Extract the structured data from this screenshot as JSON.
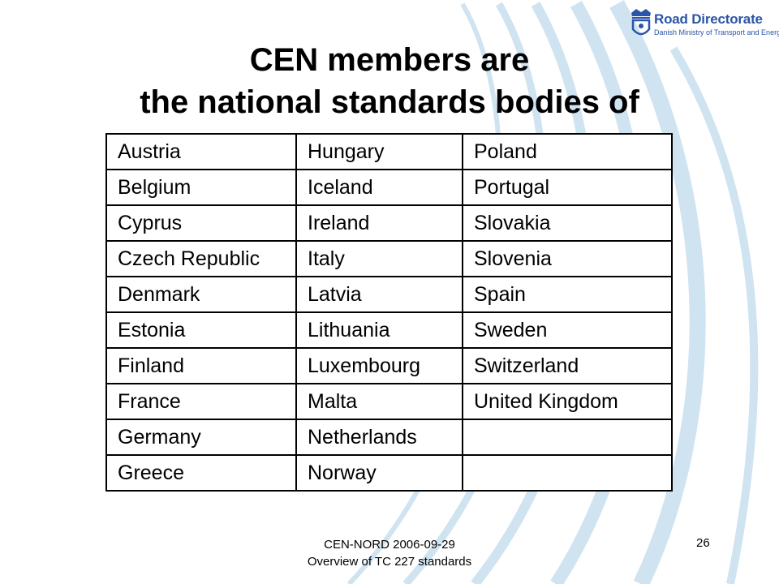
{
  "slide": {
    "title_line1": "CEN members are",
    "title_line2": "the national standards bodies of"
  },
  "logo": {
    "icon": "crown-shield-icon",
    "name": "Road Directorate",
    "subtitle": "Danish Ministry of Transport and Energy",
    "color": "#2a55a8"
  },
  "members_table": {
    "rows": [
      [
        "Austria",
        "Hungary",
        "Poland"
      ],
      [
        "Belgium",
        "Iceland",
        "Portugal"
      ],
      [
        "Cyprus",
        "Ireland",
        "Slovakia"
      ],
      [
        "Czech Republic",
        "Italy",
        "Slovenia"
      ],
      [
        "Denmark",
        "Latvia",
        "Spain"
      ],
      [
        "Estonia",
        "Lithuania",
        "Sweden"
      ],
      [
        "Finland",
        "Luxembourg",
        "Switzerland"
      ],
      [
        "France",
        "Malta",
        "United Kingdom"
      ],
      [
        "Germany",
        "Netherlands",
        ""
      ],
      [
        "Greece",
        "Norway",
        ""
      ]
    ]
  },
  "footer": {
    "line1": "CEN-NORD 2006-09-29",
    "line2": "Overview of TC 227 standards",
    "page_number": "26"
  },
  "colors": {
    "decoration_arc": "#cfe3f1",
    "decoration_arrow": "#9ac6e8"
  }
}
